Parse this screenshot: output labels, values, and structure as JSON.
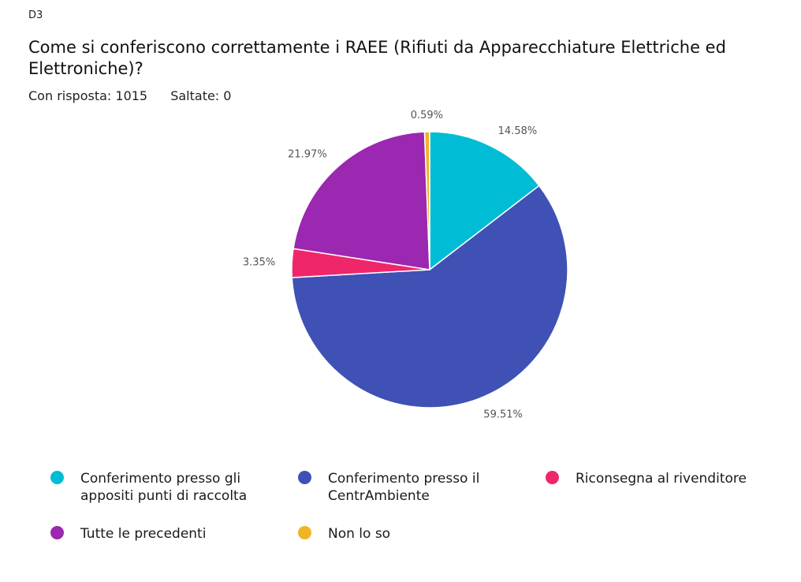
{
  "question_id": "D3",
  "title": "Come si conferiscono correttamente i RAEE (Rifiuti da Apparecchiature Elettriche ed Elettroniche)?",
  "answered": "Con risposta: 1015",
  "skipped": "Saltate: 0",
  "chart_data": {
    "type": "pie",
    "title": "Come si conferiscono correttamente i RAEE (Rifiuti da Apparecchiature Elettriche ed Elettroniche)?",
    "categories": [
      "Conferimento presso gli appositi punti di raccolta",
      "Conferimento presso il CentrAmbiente",
      "Riconsegna al rivenditore",
      "Tutte le precedenti",
      "Non lo so"
    ],
    "values": [
      14.58,
      59.51,
      3.35,
      21.97,
      0.59
    ],
    "labels": [
      "14.58%",
      "59.51%",
      "3.35%",
      "21.97%",
      "0.59%"
    ],
    "colors": [
      "#00BCD4",
      "#3F51B5",
      "#F0266B",
      "#9C27B0",
      "#F0B429"
    ],
    "legend_position": "bottom"
  }
}
